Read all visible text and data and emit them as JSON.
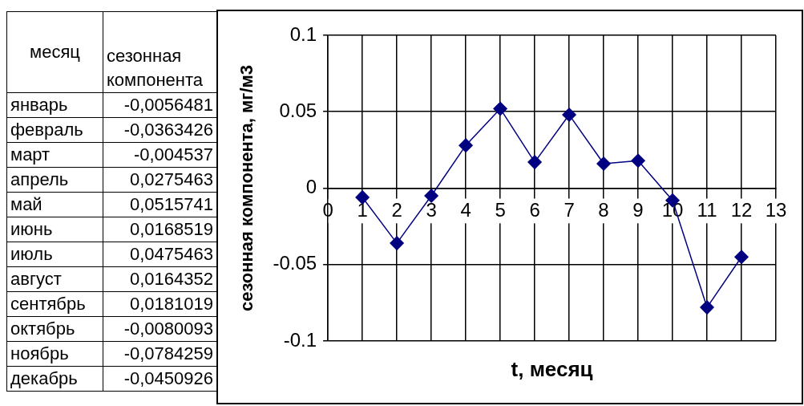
{
  "chart_data": {
    "type": "line",
    "xlabel": "t, месяц",
    "ylabel": "сезонная компонента, мг/м3",
    "x": [
      1,
      2,
      3,
      4,
      5,
      6,
      7,
      8,
      9,
      10,
      11,
      12
    ],
    "values": [
      -0.006,
      -0.036,
      -0.005,
      0.028,
      0.052,
      0.017,
      0.048,
      0.016,
      0.018,
      -0.008,
      -0.078,
      -0.045
    ],
    "color": "#000080",
    "marker": "diamond",
    "line_style": "solid",
    "grid": true,
    "legend": false,
    "xlim": [
      0,
      13
    ],
    "xticks": [
      0,
      1,
      2,
      3,
      4,
      5,
      6,
      7,
      8,
      9,
      10,
      11,
      12,
      13
    ],
    "ylim": [
      -0.1,
      0.1
    ],
    "yticks": [
      -0.1,
      -0.05,
      0,
      0.05,
      0.1
    ],
    "annotations": [
      "месяц",
      "сезонная компонента",
      "январь",
      "-0,0056481",
      "февраль",
      "-0,0363426",
      "март",
      "-0,004537",
      "апрель",
      "0,0275463",
      "май",
      "0,0515741",
      "июнь",
      "0,0168519",
      "июль",
      "0,0475463",
      "август",
      "0,0164352",
      "сентябрь",
      "0,0181019",
      "октябрь",
      "-0,0080093",
      "ноябрь",
      "-0,0784259",
      "декабрь",
      "-0,0450926"
    ]
  }
}
